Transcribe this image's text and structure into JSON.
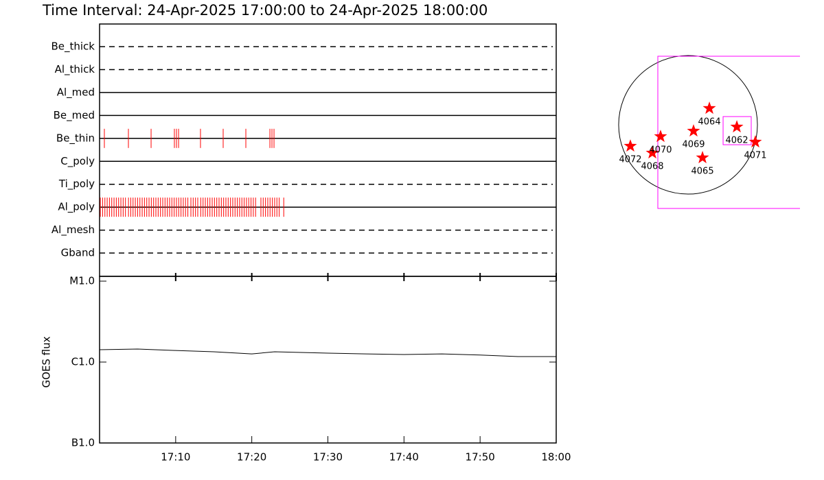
{
  "title": "Time Interval: 24-Apr-2025 17:00:00 to 24-Apr-2025 18:00:00",
  "chart_data": [
    {
      "type": "timeline",
      "categories": [
        "Be_thick",
        "Al_thick",
        "Al_med",
        "Be_med",
        "Be_thin",
        "C_poly",
        "Ti_poly",
        "Al_poly",
        "Al_mesh",
        "Gband"
      ],
      "line_styles": [
        "dashed",
        "dashed",
        "solid",
        "solid",
        "solid",
        "solid",
        "dashed",
        "solid",
        "dashed",
        "dashed"
      ],
      "observations": [
        [],
        [],
        [],
        [],
        [
          0.63,
          3.79,
          6.77,
          9.83,
          10.1,
          10.38,
          13.26,
          16.24,
          19.22,
          22.38,
          22.65,
          22.92
        ],
        [],
        [],
        [
          0.1,
          0.4,
          0.7,
          1.0,
          1.3,
          1.6,
          1.9,
          2.2,
          2.5,
          2.8,
          3.1,
          3.4,
          3.8,
          4.1,
          4.4,
          4.7,
          5.0,
          5.3,
          5.6,
          5.9,
          6.2,
          6.5,
          6.8,
          7.1,
          7.4,
          7.7,
          8.0,
          8.3,
          8.6,
          8.9,
          9.2,
          9.5,
          9.8,
          10.1,
          10.4,
          10.7,
          11.0,
          11.3,
          11.6,
          12.0,
          12.3,
          12.6,
          12.9,
          13.3,
          13.6,
          13.9,
          14.2,
          14.5,
          14.8,
          15.1,
          15.4,
          15.7,
          16.0,
          16.3,
          16.6,
          16.9,
          17.2,
          17.5,
          17.8,
          18.1,
          18.4,
          18.7,
          19.0,
          19.3,
          19.6,
          19.9,
          20.2,
          20.5,
          21.2,
          21.5,
          21.8,
          22.1,
          22.4,
          22.7,
          23.0,
          23.3,
          23.6,
          24.2
        ],
        [],
        []
      ],
      "color": "#ff0000",
      "xlim": [
        0,
        60
      ]
    },
    {
      "type": "line",
      "y_label": "GOES flux",
      "x": [
        0,
        5,
        10,
        15,
        20,
        23,
        30,
        35,
        40,
        45,
        50,
        55,
        60
      ],
      "values": [
        1.42e-06,
        1.45e-06,
        1.39e-06,
        1.34e-06,
        1.26e-06,
        1.34e-06,
        1.29e-06,
        1.26e-06,
        1.24e-06,
        1.26e-06,
        1.22e-06,
        1.17e-06,
        1.17e-06
      ],
      "color": "#000000",
      "xlim": [
        0,
        60
      ],
      "xticks": [
        {
          "value": 10,
          "label": "17:10"
        },
        {
          "value": 20,
          "label": "17:20"
        },
        {
          "value": 30,
          "label": "17:30"
        },
        {
          "value": 40,
          "label": "17:40"
        },
        {
          "value": 50,
          "label": "17:50"
        },
        {
          "value": 60,
          "label": "18:00"
        }
      ],
      "ylim": [
        1e-07,
        1e-05
      ],
      "yticks": [
        {
          "value": 1e-07,
          "label": "B1.0"
        },
        {
          "value": 1e-06,
          "label": "C1.0"
        },
        {
          "value": 1e-05,
          "label": "M1.0"
        }
      ],
      "log_scale": true
    },
    {
      "type": "map",
      "solar_radius": 960,
      "regions": [
        {
          "label": "4064",
          "x": 295,
          "y": 228
        },
        {
          "label": "4062",
          "x": 675,
          "y": -29
        },
        {
          "label": "4069",
          "x": 76,
          "y": -86
        },
        {
          "label": "4070",
          "x": -380,
          "y": -162
        },
        {
          "label": "4068",
          "x": -494,
          "y": -390
        },
        {
          "label": "4072",
          "x": -798,
          "y": -295
        },
        {
          "label": "4065",
          "x": 200,
          "y": -456
        },
        {
          "label": "4071",
          "x": 931,
          "y": -238
        }
      ],
      "color": "#ff0000",
      "fovs": [
        {
          "x": [
            -418,
            1600
          ],
          "y": [
            -1159,
            950
          ]
        },
        {
          "x": [
            485,
            874
          ],
          "y": [
            -276,
            114
          ]
        }
      ],
      "fov_color": "#ff00ff"
    }
  ]
}
